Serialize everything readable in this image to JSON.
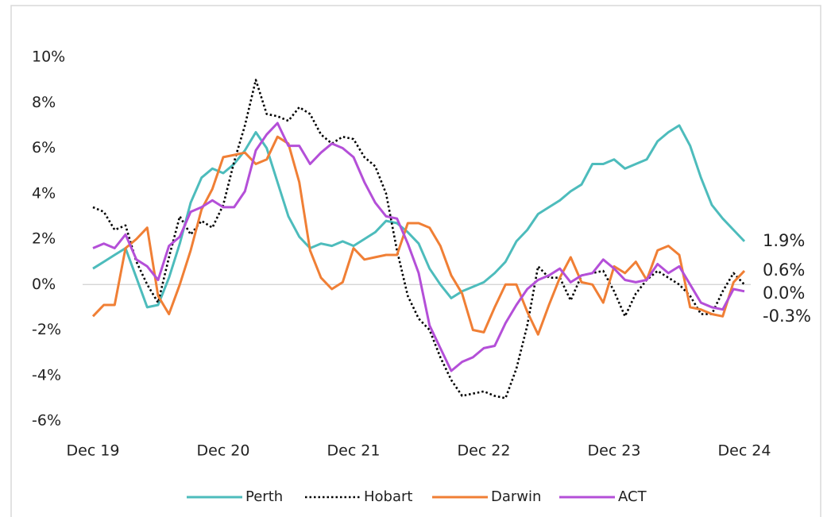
{
  "chart_data": {
    "type": "line",
    "categories": [
      "Dec 19",
      null,
      null,
      null,
      null,
      null,
      null,
      null,
      null,
      null,
      null,
      null,
      "Dec 20",
      null,
      null,
      null,
      null,
      null,
      null,
      null,
      null,
      null,
      null,
      null,
      "Dec 21",
      null,
      null,
      null,
      null,
      null,
      null,
      null,
      null,
      null,
      null,
      null,
      "Dec 22",
      null,
      null,
      null,
      null,
      null,
      null,
      null,
      null,
      null,
      null,
      null,
      "Dec 23",
      null,
      null,
      null,
      null,
      null,
      null,
      null,
      null,
      null,
      null,
      null,
      "Dec 24"
    ],
    "ylim": [
      -6,
      10
    ],
    "yticks": [
      {
        "value": -6,
        "label": "-6%"
      },
      {
        "value": -4,
        "label": "-4%"
      },
      {
        "value": -2,
        "label": "-2%"
      },
      {
        "value": 0,
        "label": "0%"
      },
      {
        "value": 2,
        "label": "2%"
      },
      {
        "value": 4,
        "label": "4%"
      },
      {
        "value": 6,
        "label": "6%"
      },
      {
        "value": 8,
        "label": "8%"
      },
      {
        "value": 10,
        "label": "10%"
      }
    ],
    "legend": "bottom",
    "series": [
      {
        "name": "Perth",
        "color": "#4dbcbc",
        "dash": "solid",
        "values": [
          0.7,
          1.0,
          1.3,
          1.6,
          0.3,
          -1.0,
          -0.9,
          0.3,
          1.8,
          3.6,
          4.7,
          5.1,
          4.9,
          5.3,
          5.9,
          6.7,
          6.0,
          4.5,
          3.0,
          2.1,
          1.6,
          1.8,
          1.7,
          1.9,
          1.7,
          2.0,
          2.3,
          2.8,
          2.7,
          2.3,
          1.8,
          0.7,
          0.0,
          -0.6,
          -0.3,
          -0.1,
          0.1,
          0.5,
          1.0,
          1.9,
          2.4,
          3.1,
          3.4,
          3.7,
          4.1,
          4.4,
          5.3,
          5.3,
          5.5,
          5.1,
          5.3,
          5.5,
          6.3,
          6.7,
          7.0,
          6.1,
          4.7,
          3.5,
          2.9,
          2.4,
          1.9
        ],
        "value_labels": [
          null,
          null,
          null,
          null,
          null,
          null,
          null,
          null,
          null,
          null,
          null,
          null,
          null,
          null,
          null,
          null,
          null,
          null,
          null,
          null,
          null,
          null,
          null,
          null,
          null,
          null,
          null,
          null,
          null,
          null,
          null,
          null,
          null,
          null,
          null,
          null,
          null,
          null,
          null,
          null,
          null,
          null,
          null,
          null,
          null,
          null,
          null,
          null,
          null,
          null,
          null,
          null,
          null,
          null,
          null,
          null,
          null,
          null,
          null,
          null,
          "1.9%"
        ]
      },
      {
        "name": "Hobart",
        "color": "#000000",
        "dash": "dotted",
        "values": [
          3.4,
          3.2,
          2.4,
          2.6,
          1.0,
          0.0,
          -0.8,
          1.2,
          3.0,
          2.2,
          2.8,
          2.5,
          3.5,
          5.4,
          7.0,
          9.0,
          7.5,
          7.4,
          7.2,
          7.8,
          7.5,
          6.6,
          6.2,
          6.5,
          6.4,
          5.6,
          5.2,
          4.0,
          1.5,
          -0.5,
          -1.5,
          -2.0,
          -3.2,
          -4.2,
          -4.9,
          -4.8,
          -4.7,
          -4.9,
          -5.0,
          -3.7,
          -1.8,
          0.8,
          0.3,
          0.3,
          -0.7,
          0.4,
          0.5,
          0.6,
          -0.3,
          -1.4,
          -0.4,
          0.2,
          0.6,
          0.3,
          0.0,
          -0.5,
          -1.3,
          -1.3,
          -0.3,
          0.5,
          0.0
        ],
        "value_labels": [
          null,
          null,
          null,
          null,
          null,
          null,
          null,
          null,
          null,
          null,
          null,
          null,
          null,
          null,
          null,
          null,
          null,
          null,
          null,
          null,
          null,
          null,
          null,
          null,
          null,
          null,
          null,
          null,
          null,
          null,
          null,
          null,
          null,
          null,
          null,
          null,
          null,
          null,
          null,
          null,
          null,
          null,
          null,
          null,
          null,
          null,
          null,
          null,
          null,
          null,
          null,
          null,
          null,
          null,
          null,
          null,
          null,
          null,
          null,
          null,
          "0.0%"
        ]
      },
      {
        "name": "Darwin",
        "color": "#f07f35",
        "dash": "solid",
        "values": [
          -1.4,
          -0.9,
          -0.9,
          1.6,
          2.0,
          2.5,
          -0.5,
          -1.3,
          0.0,
          1.5,
          3.3,
          4.2,
          5.6,
          5.7,
          5.8,
          5.3,
          5.5,
          6.5,
          6.2,
          4.5,
          1.5,
          0.3,
          -0.2,
          0.1,
          1.6,
          1.1,
          1.2,
          1.3,
          1.3,
          2.7,
          2.7,
          2.5,
          1.7,
          0.4,
          -0.4,
          -2.0,
          -2.1,
          -1.0,
          0.0,
          0.0,
          -1.2,
          -2.2,
          -0.9,
          0.3,
          1.2,
          0.1,
          0.0,
          -0.8,
          0.8,
          0.5,
          1.0,
          0.2,
          1.5,
          1.7,
          1.3,
          -1.0,
          -1.1,
          -1.3,
          -1.4,
          0.1,
          0.6
        ],
        "value_labels": [
          null,
          null,
          null,
          null,
          null,
          null,
          null,
          null,
          null,
          null,
          null,
          null,
          null,
          null,
          null,
          null,
          null,
          null,
          null,
          null,
          null,
          null,
          null,
          null,
          null,
          null,
          null,
          null,
          null,
          null,
          null,
          null,
          null,
          null,
          null,
          null,
          null,
          null,
          null,
          null,
          null,
          null,
          null,
          null,
          null,
          null,
          null,
          null,
          null,
          null,
          null,
          null,
          null,
          null,
          null,
          null,
          null,
          null,
          null,
          null,
          "0.6%"
        ]
      },
      {
        "name": "ACT",
        "color": "#b44fd8",
        "dash": "solid",
        "values": [
          1.6,
          1.8,
          1.6,
          2.2,
          1.1,
          0.8,
          0.2,
          1.7,
          2.1,
          3.2,
          3.4,
          3.7,
          3.4,
          3.4,
          4.1,
          5.9,
          6.6,
          7.1,
          6.1,
          6.1,
          5.3,
          5.8,
          6.2,
          6.0,
          5.6,
          4.5,
          3.6,
          3.0,
          2.9,
          1.8,
          0.5,
          -1.8,
          -2.8,
          -3.8,
          -3.4,
          -3.2,
          -2.8,
          -2.7,
          -1.7,
          -0.9,
          -0.2,
          0.2,
          0.4,
          0.7,
          0.1,
          0.4,
          0.5,
          1.1,
          0.7,
          0.2,
          0.1,
          0.2,
          0.9,
          0.5,
          0.8,
          0.0,
          -0.8,
          -1.0,
          -1.1,
          -0.2,
          -0.3
        ],
        "value_labels": [
          null,
          null,
          null,
          null,
          null,
          null,
          null,
          null,
          null,
          null,
          null,
          null,
          null,
          null,
          null,
          null,
          null,
          null,
          null,
          null,
          null,
          null,
          null,
          null,
          null,
          null,
          null,
          null,
          null,
          null,
          null,
          null,
          null,
          null,
          null,
          null,
          null,
          null,
          null,
          null,
          null,
          null,
          null,
          null,
          null,
          null,
          null,
          null,
          null,
          null,
          null,
          null,
          null,
          null,
          null,
          null,
          null,
          null,
          null,
          null,
          "-0.3%"
        ]
      }
    ]
  }
}
